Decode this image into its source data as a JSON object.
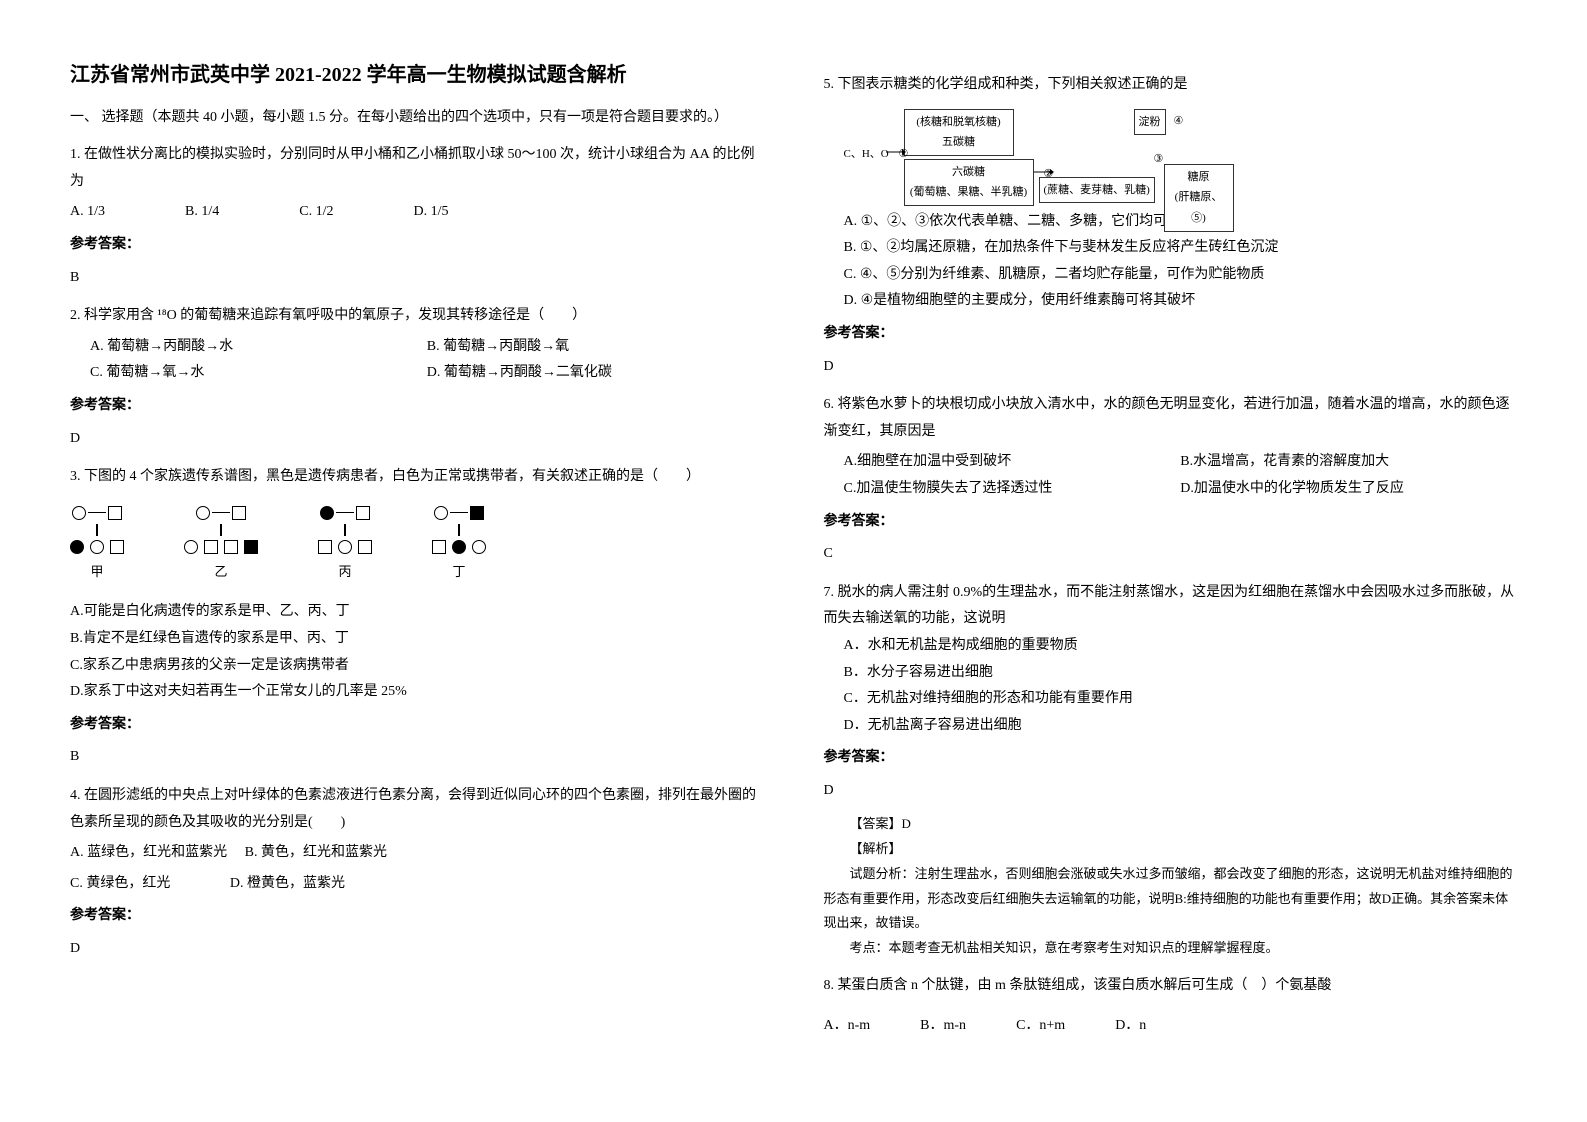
{
  "title": "江苏省常州市武英中学 2021-2022 学年高一生物模拟试题含解析",
  "section1": "一、 选择题（本题共 40 小题，每小题 1.5 分。在每小题给出的四个选项中，只有一项是符合题目要求的。）",
  "q1": {
    "text": "1. 在做性状分离比的模拟实验时，分别同时从甲小桶和乙小桶抓取小球 50～100 次，统计小球组合为 AA 的比例为",
    "a": "A. 1/3",
    "b": "B. 1/4",
    "c": "C. 1/2",
    "d": "D. 1/5",
    "ans_label": "参考答案：",
    "ans": "B"
  },
  "q2": {
    "text": "2. 科学家用含 ¹⁸O 的葡萄糖来追踪有氧呼吸中的氧原子，发现其转移途径是（　　）",
    "a": "A. 葡萄糖→丙酮酸→水",
    "b": "B. 葡萄糖→丙酮酸→氧",
    "c": "C. 葡萄糖→氧→水",
    "d": "D. 葡萄糖→丙酮酸→二氧化碳",
    "ans_label": "参考答案：",
    "ans": "D"
  },
  "q3": {
    "text": "3. 下图的 4 个家族遗传系谱图，黑色是遗传病患者，白色为正常或携带者，有关叙述正确的是（　　）",
    "labels": {
      "a": "甲",
      "b": "乙",
      "c": "丙",
      "d": "丁"
    },
    "a": "A.可能是白化病遗传的家系是甲、乙、丙、丁",
    "b": "B.肯定不是红绿色盲遗传的家系是甲、丙、丁",
    "c": "C.家系乙中患病男孩的父亲一定是该病携带者",
    "d": "D.家系丁中这对夫妇若再生一个正常女儿的几率是 25%",
    "ans_label": "参考答案：",
    "ans": "B"
  },
  "q4": {
    "text": "4. 在圆形滤纸的中央点上对叶绿体的色素滤液进行色素分离，会得到近似同心环的四个色素圈，排列在最外圈的色素所呈现的颜色及其吸收的光分别是(　　)",
    "a": "A. 蓝绿色，红光和蓝紫光",
    "b": "B. 黄色，红光和蓝紫光",
    "c": "C. 黄绿色，红光",
    "d": "D. 橙黄色，蓝紫光",
    "ans_label": "参考答案：",
    "ans": "D"
  },
  "q5": {
    "text": "5. 下图表示糖类的化学组成和种类，下列相关叙述正确的是",
    "diagram": {
      "box1": "(核糖和脱氧核糖)\n五碳糖",
      "box2": "六碳糖\n(葡萄糖、果糖、半乳糖)",
      "box3": "(蔗糖、麦芽糖、乳糖)",
      "box4": "淀粉",
      "box5": "糖原\n(肝糖原、⑤)",
      "left": "C、H、O",
      "n1": "①",
      "n2": "②",
      "n3": "③",
      "n4": "④"
    },
    "a": "A. ①、②、③依次代表单糖、二糖、多糖，它们均可继续水解",
    "b": "B. ①、②均属还原糖，在加热条件下与斐林发生反应将产生砖红色沉淀",
    "c": "C. ④、⑤分别为纤维素、肌糖原，二者均贮存能量，可作为贮能物质",
    "d": "D. ④是植物细胞壁的主要成分，使用纤维素酶可将其破坏",
    "ans_label": "参考答案：",
    "ans": "D"
  },
  "q6": {
    "text": "6. 将紫色水萝卜的块根切成小块放入清水中，水的颜色无明显变化，若进行加温，随着水温的增高，水的颜色逐渐变红，其原因是",
    "a": "A.细胞壁在加温中受到破坏",
    "b": "B.水温增高，花青素的溶解度加大",
    "c": "C.加温使生物膜失去了选择透过性",
    "d": "D.加温使水中的化学物质发生了反应",
    "ans_label": "参考答案：",
    "ans": "C"
  },
  "q7": {
    "text": "7. 脱水的病人需注射 0.9%的生理盐水，而不能注射蒸馏水，这是因为红细胞在蒸馏水中会因吸水过多而胀破，从而失去输送氧的功能，这说明",
    "a": "A．水和无机盐是构成细胞的重要物质",
    "b": "B．水分子容易进出细胞",
    "c": "C．无机盐对维持细胞的形态和功能有重要作用",
    "d": "D．无机盐离子容易进出细胞",
    "ans_label": "参考答案：",
    "ans": "D",
    "explain_title": "【答案】D",
    "explain_title2": "【解析】",
    "explain": "试题分析：注射生理盐水，否则细胞会涨破或失水过多而皱缩，都会改变了细胞的形态，这说明无机盐对维持细胞的形态有重要作用，形态改变后红细胞失去运输氧的功能，说明B:维持细胞的功能也有重要作用；故D正确。其余答案未体现出来，故错误。",
    "explain2": "考点：本题考查无机盐相关知识，意在考察考生对知识点的理解掌握程度。"
  },
  "q8": {
    "text": "8. 某蛋白质含 n 个肽键，由 m 条肽链组成，该蛋白质水解后可生成（　）个氨基酸",
    "a": "A．n-m",
    "b": "B．m-n",
    "c": "C．n+m",
    "d": "D．n"
  },
  "colors": {
    "text": "#000000",
    "bg": "#ffffff"
  }
}
